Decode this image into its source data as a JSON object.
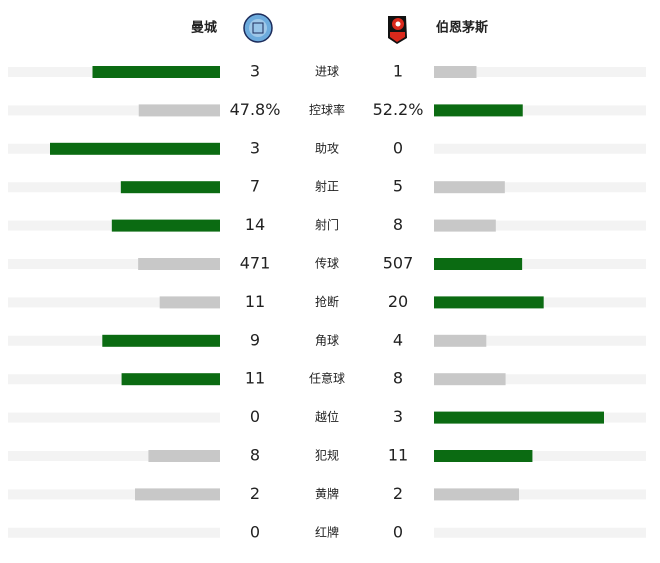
{
  "teams": {
    "home": "曼城",
    "away": "伯恩茅斯"
  },
  "colors": {
    "lead": "#0b6b12",
    "trail": "#c8c8c8",
    "track": "#f3f3f3"
  },
  "stats": [
    {
      "label": "进球",
      "home": 3,
      "away": 1
    },
    {
      "label": "控球率",
      "home": 47.8,
      "away": 52.2,
      "home_label": "47.8%",
      "away_label": "52.2%"
    },
    {
      "label": "助攻",
      "home": 3,
      "away": 0
    },
    {
      "label": "射正",
      "home": 7,
      "away": 5
    },
    {
      "label": "射门",
      "home": 14,
      "away": 8
    },
    {
      "label": "传球",
      "home": 471,
      "away": 507
    },
    {
      "label": "抢断",
      "home": 11,
      "away": 20
    },
    {
      "label": "角球",
      "home": 9,
      "away": 4
    },
    {
      "label": "任意球",
      "home": 11,
      "away": 8
    },
    {
      "label": "越位",
      "home": 0,
      "away": 3
    },
    {
      "label": "犯规",
      "home": 8,
      "away": 11
    },
    {
      "label": "黄牌",
      "home": 2,
      "away": 2
    },
    {
      "label": "红牌",
      "home": 0,
      "away": 0
    }
  ]
}
